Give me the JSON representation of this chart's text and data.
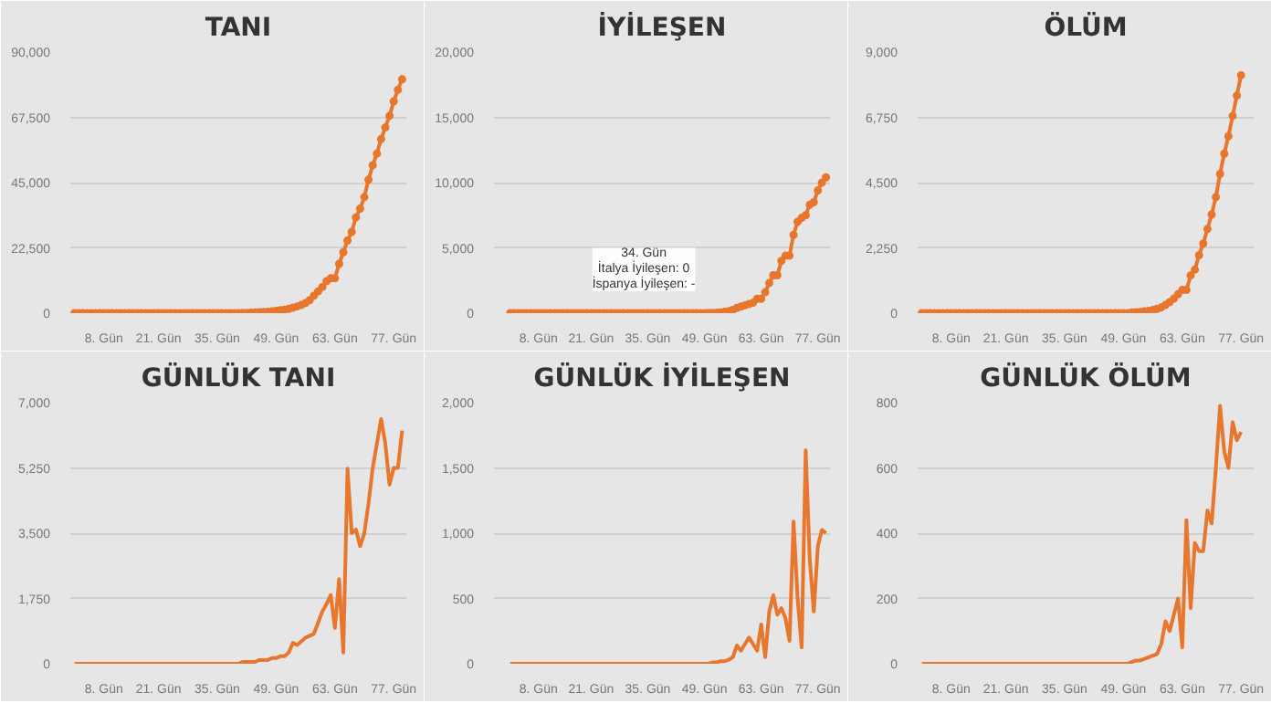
{
  "chart_data": [
    {
      "type": "line",
      "title": "TANI",
      "marker": "circle",
      "grid": "y",
      "color": "#e8762c",
      "xlim": [
        0,
        80
      ],
      "xticks": [
        {
          "value": 8,
          "label": "8. Gün"
        },
        {
          "value": 21,
          "label": "21. Gün"
        },
        {
          "value": 35,
          "label": "35. Gün"
        },
        {
          "value": 49,
          "label": "49. Gün"
        },
        {
          "value": 63,
          "label": "63. Gün"
        },
        {
          "value": 77,
          "label": "77. Gün"
        }
      ],
      "ylim": [
        0,
        90000
      ],
      "yticks": [
        {
          "value": 0,
          "label": "0"
        },
        {
          "value": 22500,
          "label": "22,500"
        },
        {
          "value": 45000,
          "label": "45,000"
        },
        {
          "value": 67500,
          "label": "67,500"
        },
        {
          "value": 90000,
          "label": "90,000"
        }
      ],
      "x": [
        1,
        2,
        3,
        4,
        5,
        6,
        7,
        8,
        9,
        10,
        11,
        12,
        13,
        14,
        15,
        16,
        17,
        18,
        19,
        20,
        21,
        22,
        23,
        24,
        25,
        26,
        27,
        28,
        29,
        30,
        31,
        32,
        33,
        34,
        35,
        36,
        37,
        38,
        39,
        40,
        41,
        42,
        43,
        44,
        45,
        46,
        47,
        48,
        49,
        50,
        51,
        52,
        53,
        54,
        55,
        56,
        57,
        58,
        59,
        60,
        61,
        62,
        63,
        64,
        65,
        66,
        67,
        68,
        69,
        70,
        71,
        72,
        73,
        74,
        75,
        76,
        77,
        78,
        79
      ],
      "values": [
        0,
        0,
        0,
        0,
        0,
        0,
        0,
        0,
        0,
        0,
        0,
        0,
        0,
        0,
        0,
        0,
        0,
        0,
        0,
        0,
        0,
        0,
        0,
        0,
        0,
        0,
        0,
        0,
        0,
        0,
        0,
        0,
        0,
        0,
        0,
        0,
        0,
        0,
        0,
        0,
        50,
        100,
        150,
        200,
        300,
        400,
        500,
        650,
        800,
        1000,
        1200,
        1500,
        1900,
        2300,
        2800,
        3500,
        4500,
        6000,
        7500,
        9000,
        11000,
        12000,
        12000,
        17000,
        21000,
        25000,
        28000,
        33000,
        36000,
        40000,
        46000,
        51000,
        55000,
        60000,
        64000,
        68000,
        73000,
        77000,
        80600
      ]
    },
    {
      "type": "line",
      "title": "İYİLEŞEN",
      "marker": "circle",
      "grid": "y",
      "color": "#e8762c",
      "xlim": [
        -3,
        80
      ],
      "xticks": [
        {
          "value": 8,
          "label": "8. Gün"
        },
        {
          "value": 21,
          "label": "21. Gün"
        },
        {
          "value": 35,
          "label": "35. Gün"
        },
        {
          "value": 49,
          "label": "49. Gün"
        },
        {
          "value": 63,
          "label": "63. Gün"
        },
        {
          "value": 77,
          "label": "77. Gün"
        }
      ],
      "ylim": [
        0,
        20000
      ],
      "yticks": [
        {
          "value": 0,
          "label": "0"
        },
        {
          "value": 5000,
          "label": "5,000"
        },
        {
          "value": 10000,
          "label": "10,000"
        },
        {
          "value": 15000,
          "label": "15,000"
        },
        {
          "value": 20000,
          "label": "20,000"
        }
      ],
      "annotations": [
        {
          "text": "34. Gün\nİtalya İyileşen: 0\nİspanya İyileşen: -",
          "x": 34,
          "y": 0
        }
      ],
      "x": [
        1,
        2,
        3,
        4,
        5,
        6,
        7,
        8,
        9,
        10,
        11,
        12,
        13,
        14,
        15,
        16,
        17,
        18,
        19,
        20,
        21,
        22,
        23,
        24,
        25,
        26,
        27,
        28,
        29,
        30,
        31,
        32,
        33,
        34,
        35,
        36,
        37,
        38,
        39,
        40,
        41,
        42,
        43,
        44,
        45,
        46,
        47,
        48,
        49,
        50,
        51,
        52,
        53,
        54,
        55,
        56,
        57,
        58,
        59,
        60,
        61,
        62,
        63,
        64,
        65,
        66,
        67,
        68,
        69,
        70,
        71,
        72,
        73,
        74,
        75,
        76,
        77,
        78,
        79
      ],
      "values": [
        0,
        0,
        0,
        0,
        0,
        0,
        0,
        0,
        0,
        0,
        0,
        0,
        0,
        0,
        0,
        0,
        0,
        0,
        0,
        0,
        0,
        0,
        0,
        0,
        0,
        0,
        0,
        0,
        0,
        0,
        0,
        0,
        0,
        0,
        0,
        0,
        0,
        0,
        0,
        0,
        0,
        0,
        0,
        0,
        0,
        0,
        0,
        0,
        0,
        10,
        20,
        40,
        60,
        100,
        150,
        250,
        400,
        500,
        600,
        700,
        800,
        1100,
        1100,
        1600,
        2300,
        2900,
        2900,
        4000,
        4400,
        4400,
        6000,
        7000,
        7300,
        7500,
        8300,
        8500,
        9400,
        10000,
        10400
      ]
    },
    {
      "type": "line",
      "title": "ÖLÜM",
      "marker": "circle",
      "grid": "y",
      "color": "#e8762c",
      "xlim": [
        0,
        80
      ],
      "xticks": [
        {
          "value": 8,
          "label": "8. Gün"
        },
        {
          "value": 21,
          "label": "21. Gün"
        },
        {
          "value": 35,
          "label": "35. Gün"
        },
        {
          "value": 49,
          "label": "49. Gün"
        },
        {
          "value": 63,
          "label": "63. Gün"
        },
        {
          "value": 77,
          "label": "77. Gün"
        }
      ],
      "ylim": [
        0,
        9000
      ],
      "yticks": [
        {
          "value": 0,
          "label": "0"
        },
        {
          "value": 2250,
          "label": "2,250"
        },
        {
          "value": 4500,
          "label": "4,500"
        },
        {
          "value": 6750,
          "label": "6,750"
        },
        {
          "value": 9000,
          "label": "9,000"
        }
      ],
      "x": [
        1,
        2,
        3,
        4,
        5,
        6,
        7,
        8,
        9,
        10,
        11,
        12,
        13,
        14,
        15,
        16,
        17,
        18,
        19,
        20,
        21,
        22,
        23,
        24,
        25,
        26,
        27,
        28,
        29,
        30,
        31,
        32,
        33,
        34,
        35,
        36,
        37,
        38,
        39,
        40,
        41,
        42,
        43,
        44,
        45,
        46,
        47,
        48,
        49,
        50,
        51,
        52,
        53,
        54,
        55,
        56,
        57,
        58,
        59,
        60,
        61,
        62,
        63,
        64,
        65,
        66,
        67,
        68,
        69,
        70,
        71,
        72,
        73,
        74,
        75,
        76,
        77
      ],
      "values": [
        0,
        0,
        0,
        0,
        0,
        0,
        0,
        0,
        0,
        0,
        0,
        0,
        0,
        0,
        0,
        0,
        0,
        0,
        0,
        0,
        0,
        0,
        0,
        0,
        0,
        0,
        0,
        0,
        0,
        0,
        0,
        0,
        0,
        0,
        0,
        0,
        0,
        0,
        0,
        0,
        0,
        0,
        0,
        0,
        0,
        0,
        0,
        0,
        0,
        0,
        20,
        30,
        40,
        60,
        80,
        110,
        150,
        200,
        280,
        380,
        500,
        650,
        800,
        800,
        1300,
        1500,
        2000,
        2400,
        2900,
        3400,
        4000,
        4800,
        5500,
        6100,
        6800,
        7500,
        8200
      ]
    },
    {
      "type": "line",
      "title": "GÜNLÜK TANI",
      "grid": "y",
      "color": "#e8762c",
      "xlim": [
        0,
        80
      ],
      "xticks": [
        {
          "value": 8,
          "label": "8. Gün"
        },
        {
          "value": 21,
          "label": "21. Gün"
        },
        {
          "value": 35,
          "label": "35. Gün"
        },
        {
          "value": 49,
          "label": "49. Gün"
        },
        {
          "value": 63,
          "label": "63. Gün"
        },
        {
          "value": 77,
          "label": "77. Gün"
        }
      ],
      "ylim": [
        0,
        7000
      ],
      "yticks": [
        {
          "value": 0,
          "label": "0"
        },
        {
          "value": 1750,
          "label": "1,750"
        },
        {
          "value": 3500,
          "label": "3,500"
        },
        {
          "value": 5250,
          "label": "5,250"
        },
        {
          "value": 7000,
          "label": "7,000"
        }
      ],
      "x": [
        1,
        2,
        3,
        4,
        5,
        6,
        7,
        8,
        9,
        10,
        11,
        12,
        13,
        14,
        15,
        16,
        17,
        18,
        19,
        20,
        21,
        22,
        23,
        24,
        25,
        26,
        27,
        28,
        29,
        30,
        31,
        32,
        33,
        34,
        35,
        36,
        37,
        38,
        39,
        40,
        41,
        42,
        43,
        44,
        45,
        46,
        47,
        48,
        49,
        50,
        51,
        52,
        53,
        54,
        55,
        56,
        57,
        58,
        59,
        60,
        61,
        62,
        63,
        64,
        65,
        66,
        67,
        68,
        69,
        70,
        71,
        72,
        73,
        74,
        75,
        76,
        77,
        78,
        79
      ],
      "values": [
        0,
        0,
        0,
        0,
        0,
        0,
        0,
        0,
        0,
        0,
        0,
        0,
        0,
        0,
        0,
        0,
        0,
        0,
        0,
        0,
        0,
        0,
        0,
        0,
        0,
        0,
        0,
        0,
        0,
        0,
        0,
        0,
        0,
        0,
        0,
        0,
        0,
        0,
        0,
        0,
        50,
        50,
        50,
        50,
        100,
        100,
        100,
        150,
        150,
        200,
        200,
        300,
        560,
        500,
        600,
        700,
        750,
        800,
        1100,
        1400,
        1600,
        1840,
        960,
        2270,
        300,
        5230,
        3500,
        3600,
        3150,
        3500,
        4300,
        5250,
        5900,
        6560,
        5900,
        4800,
        5250,
        5250,
        6250
      ]
    },
    {
      "type": "line",
      "title": "GÜNLÜK İYİLEŞEN",
      "grid": "y",
      "color": "#e8762c",
      "xlim": [
        -3,
        80
      ],
      "xticks": [
        {
          "value": 8,
          "label": "8. Gün"
        },
        {
          "value": 21,
          "label": "21. Gün"
        },
        {
          "value": 35,
          "label": "35. Gün"
        },
        {
          "value": 49,
          "label": "49. Gün"
        },
        {
          "value": 63,
          "label": "63. Gün"
        },
        {
          "value": 77,
          "label": "77. Gün"
        }
      ],
      "ylim": [
        0,
        2000
      ],
      "yticks": [
        {
          "value": 0,
          "label": "0"
        },
        {
          "value": 500,
          "label": "500"
        },
        {
          "value": 1000,
          "label": "1,000"
        },
        {
          "value": 1500,
          "label": "1,500"
        },
        {
          "value": 2000,
          "label": "2,000"
        }
      ],
      "x": [
        1,
        2,
        3,
        4,
        5,
        6,
        7,
        8,
        9,
        10,
        11,
        12,
        13,
        14,
        15,
        16,
        17,
        18,
        19,
        20,
        21,
        22,
        23,
        24,
        25,
        26,
        27,
        28,
        29,
        30,
        31,
        32,
        33,
        34,
        35,
        36,
        37,
        38,
        39,
        40,
        41,
        42,
        43,
        44,
        45,
        46,
        47,
        48,
        49,
        50,
        51,
        52,
        53,
        54,
        55,
        56,
        57,
        58,
        59,
        60,
        61,
        62,
        63,
        64,
        65,
        66,
        67,
        68,
        69,
        70,
        71,
        72,
        73,
        74,
        75,
        76,
        77,
        78,
        79
      ],
      "values": [
        0,
        0,
        0,
        0,
        0,
        0,
        0,
        0,
        0,
        0,
        0,
        0,
        0,
        0,
        0,
        0,
        0,
        0,
        0,
        0,
        0,
        0,
        0,
        0,
        0,
        0,
        0,
        0,
        0,
        0,
        0,
        0,
        0,
        0,
        0,
        0,
        0,
        0,
        0,
        0,
        0,
        0,
        0,
        0,
        0,
        0,
        0,
        0,
        0,
        0,
        10,
        10,
        20,
        20,
        30,
        50,
        140,
        100,
        150,
        200,
        150,
        100,
        300,
        50,
        400,
        525,
        375,
        425,
        350,
        175,
        1090,
        500,
        125,
        1635,
        800,
        400,
        900,
        1025,
        1000
      ]
    },
    {
      "type": "line",
      "title": "GÜNLÜK ÖLÜM",
      "grid": "y",
      "color": "#e8762c",
      "xlim": [
        0,
        80
      ],
      "xticks": [
        {
          "value": 8,
          "label": "8. Gün"
        },
        {
          "value": 21,
          "label": "21. Gün"
        },
        {
          "value": 35,
          "label": "35. Gün"
        },
        {
          "value": 49,
          "label": "49. Gün"
        },
        {
          "value": 63,
          "label": "63. Gün"
        },
        {
          "value": 77,
          "label": "77. Gün"
        }
      ],
      "ylim": [
        0,
        800
      ],
      "yticks": [
        {
          "value": 0,
          "label": "0"
        },
        {
          "value": 200,
          "label": "200"
        },
        {
          "value": 400,
          "label": "400"
        },
        {
          "value": 600,
          "label": "600"
        },
        {
          "value": 800,
          "label": "800"
        }
      ],
      "x": [
        1,
        2,
        3,
        4,
        5,
        6,
        7,
        8,
        9,
        10,
        11,
        12,
        13,
        14,
        15,
        16,
        17,
        18,
        19,
        20,
        21,
        22,
        23,
        24,
        25,
        26,
        27,
        28,
        29,
        30,
        31,
        32,
        33,
        34,
        35,
        36,
        37,
        38,
        39,
        40,
        41,
        42,
        43,
        44,
        45,
        46,
        47,
        48,
        49,
        50,
        51,
        52,
        53,
        54,
        55,
        56,
        57,
        58,
        59,
        60,
        61,
        62,
        63,
        64,
        65,
        66,
        67,
        68,
        69,
        70,
        71,
        72,
        73,
        74,
        75,
        76,
        77
      ],
      "values": [
        0,
        0,
        0,
        0,
        0,
        0,
        0,
        0,
        0,
        0,
        0,
        0,
        0,
        0,
        0,
        0,
        0,
        0,
        0,
        0,
        0,
        0,
        0,
        0,
        0,
        0,
        0,
        0,
        0,
        0,
        0,
        0,
        0,
        0,
        0,
        0,
        0,
        0,
        0,
        0,
        0,
        0,
        0,
        0,
        0,
        0,
        0,
        0,
        0,
        0,
        5,
        10,
        10,
        15,
        20,
        25,
        30,
        60,
        130,
        100,
        150,
        200,
        50,
        440,
        170,
        370,
        345,
        345,
        470,
        430,
        600,
        790,
        650,
        600,
        740,
        685,
        710
      ]
    }
  ]
}
